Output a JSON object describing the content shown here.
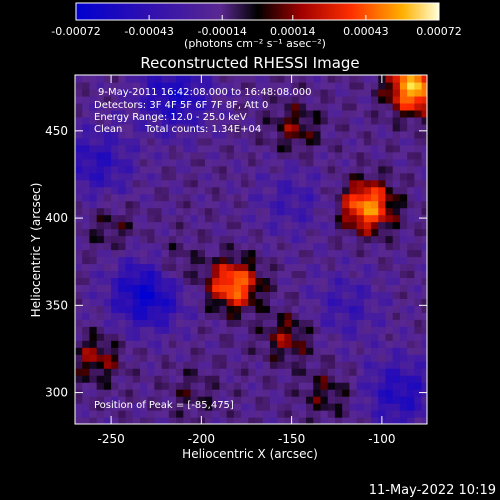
{
  "chart_data": {
    "type": "heatmap",
    "title": "Reconstructed RHESSI Image",
    "xlabel": "Heliocentric X (arcsec)",
    "ylabel": "Heliocentric Y (arcsec)",
    "xlim": [
      -270,
      -75
    ],
    "ylim": [
      282,
      482
    ],
    "x_ticks": [
      -250,
      -200,
      -150,
      -100
    ],
    "y_ticks": [
      300,
      350,
      400,
      450
    ],
    "colorbar": {
      "ticks": [
        -0.00072,
        -0.00043,
        -0.00014,
        0.00014,
        0.00043,
        0.00072
      ],
      "tick_labels": [
        "-0.00072",
        "-0.00043",
        "-0.00014",
        "0.00014",
        "0.00043",
        "0.00072"
      ],
      "range": [
        -0.00072,
        0.00072
      ],
      "unit_label": "(photons cm⁻² s⁻¹ asec⁻²)"
    },
    "peak_position": [
      -85,
      475
    ],
    "intensity_blobs": [
      {
        "x": -182,
        "y": 362,
        "value": 0.00055
      },
      {
        "x": -108,
        "y": 407,
        "value": 0.0006
      },
      {
        "x": -82,
        "y": 475,
        "value": 0.0007
      },
      {
        "x": -152,
        "y": 332,
        "value": 0.00025
      },
      {
        "x": -215,
        "y": 372,
        "value": 0.0002
      },
      {
        "x": -250,
        "y": 395,
        "value": 0.00015
      },
      {
        "x": -148,
        "y": 452,
        "value": 0.00022
      },
      {
        "x": -258,
        "y": 320,
        "value": 0.00025
      },
      {
        "x": -130,
        "y": 300,
        "value": 0.00018
      },
      {
        "x": -205,
        "y": 300,
        "value": 0.00012
      },
      {
        "x": -230,
        "y": 357,
        "value": -0.0005
      },
      {
        "x": -215,
        "y": 470,
        "value": -0.0004
      },
      {
        "x": -90,
        "y": 300,
        "value": -0.00035
      },
      {
        "x": -258,
        "y": 432,
        "value": -0.0003
      },
      {
        "x": -120,
        "y": 350,
        "value": -0.0002
      },
      {
        "x": -150,
        "y": 410,
        "value": -0.00018
      }
    ],
    "annotations": {
      "time_range": "9-May-2011 16:42:08.000 to 16:48:08.000",
      "detectors": "Detectors: 3F 4F 5F 6F 7F 8F, Att 0",
      "energy_range": "Energy Range: 12.0 - 25.0 keV",
      "algorithm": "Clean",
      "total_counts": "Total counts: 1.34E+04",
      "peak": "Position of Peak = [-85,475]"
    }
  },
  "footer_timestamp": "11-May-2022 10:19"
}
